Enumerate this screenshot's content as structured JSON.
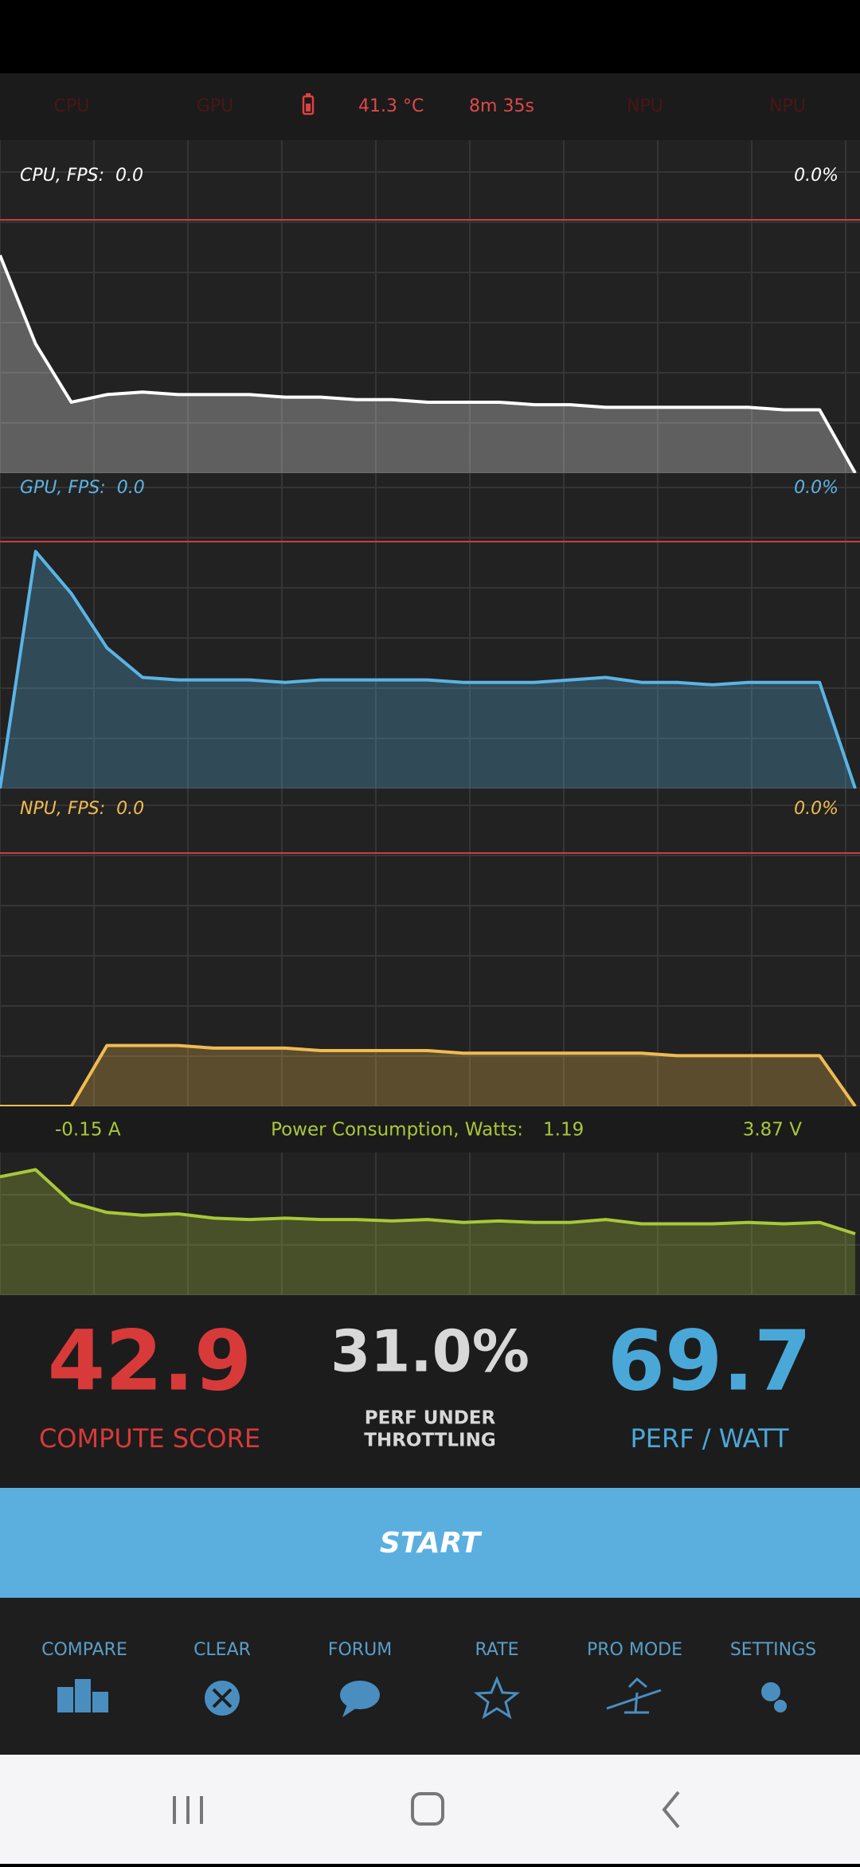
{
  "header": {
    "items": [
      "CPU",
      "GPU",
      "41.3 °C",
      "8m 35s",
      "NPU",
      "NPU"
    ]
  },
  "graphs": [
    {
      "label": "CPU, FPS:",
      "fps": "0.0",
      "percent": "0.0%",
      "color": "#ffffff",
      "limit_line": true,
      "ylim": [
        0,
        100
      ],
      "values": [
        86,
        51,
        28,
        31,
        32,
        31,
        31,
        31,
        30,
        30,
        29,
        29,
        28,
        28,
        28,
        27,
        27,
        26,
        26,
        26,
        26,
        26,
        25,
        25,
        0
      ]
    },
    {
      "label": "GPU, FPS:",
      "fps": "0.0",
      "percent": "0.0%",
      "color": "#5ab4e6",
      "limit_line": true,
      "ylim": [
        0,
        100
      ],
      "values": [
        0,
        96,
        79,
        57,
        45,
        44,
        44,
        44,
        43,
        44,
        44,
        44,
        44,
        43,
        43,
        43,
        44,
        45,
        43,
        43,
        42,
        43,
        43,
        43,
        0
      ]
    },
    {
      "label": "NPU, FPS:",
      "fps": "0.0",
      "percent": "0.0%",
      "color": "#f0bc50",
      "limit_line": true,
      "ylim": [
        0,
        100
      ],
      "values": [
        0,
        0,
        0,
        24,
        24,
        24,
        23,
        23,
        23,
        22,
        22,
        22,
        22,
        21,
        21,
        21,
        21,
        21,
        21,
        20,
        20,
        20,
        20,
        20,
        0
      ]
    }
  ],
  "power": {
    "current": "-0.15 A",
    "label": "Power Consumption, Watts:",
    "watts": "1.19",
    "voltage": "3.87 V",
    "color": "#a8c838",
    "ylim": [
      0,
      100
    ],
    "values": [
      83,
      88,
      65,
      58,
      56,
      57,
      54,
      53,
      54,
      53,
      53,
      52,
      53,
      51,
      52,
      51,
      51,
      53,
      50,
      50,
      50,
      51,
      50,
      51,
      43
    ]
  },
  "scores": [
    {
      "value": "42.9",
      "lines": [
        "COMPUTE SCORE"
      ]
    },
    {
      "value": "31.0%",
      "lines": [
        "PERF UNDER",
        "THROTTLING"
      ]
    },
    {
      "value": "69.7",
      "lines": [
        "PERF / WATT"
      ]
    }
  ],
  "button": "START",
  "nav": [
    "COMPARE",
    "CLEAR",
    "FORUM",
    "RATE",
    "PRO MODE",
    "SETTINGS"
  ]
}
